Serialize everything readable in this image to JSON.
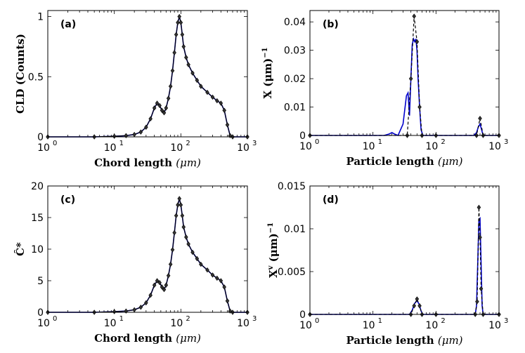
{
  "chart_data": [
    {
      "type": "line",
      "panel_label": "(a)",
      "xlabel": "Chord length",
      "xunit": "(μm)",
      "ylabel": "CLD (Counts)",
      "xscale": "log",
      "xlim": [
        1,
        1000
      ],
      "ylim": [
        0,
        1.05
      ],
      "xticks": [
        "10",
        "10",
        "10",
        "10"
      ],
      "xtick_exponents": [
        "0",
        "1",
        "2",
        "3"
      ],
      "yticks": [
        "0",
        "0.5",
        "1"
      ],
      "ytick_values": [
        0,
        0.5,
        1
      ],
      "series": [
        {
          "role": "fit",
          "color": "#0000cc",
          "x": [
            1,
            5,
            10,
            15,
            20,
            25,
            30,
            35,
            40,
            44,
            48,
            52,
            56,
            60,
            65,
            70,
            75,
            80,
            85,
            90,
            95,
            100,
            105,
            110,
            120,
            130,
            150,
            175,
            200,
            250,
            300,
            350,
            400,
            450,
            500,
            550,
            600,
            1000
          ],
          "y": [
            0,
            0,
            0.005,
            0.01,
            0.02,
            0.04,
            0.08,
            0.15,
            0.24,
            0.28,
            0.26,
            0.22,
            0.2,
            0.24,
            0.32,
            0.42,
            0.55,
            0.7,
            0.85,
            0.95,
            1.0,
            0.95,
            0.85,
            0.75,
            0.66,
            0.6,
            0.53,
            0.47,
            0.42,
            0.37,
            0.33,
            0.3,
            0.28,
            0.22,
            0.1,
            0.01,
            0,
            0
          ]
        },
        {
          "role": "data",
          "color": "#000000",
          "marker": "diamond",
          "x": [
            1,
            5,
            10,
            15,
            20,
            25,
            30,
            35,
            40,
            44,
            48,
            52,
            56,
            60,
            65,
            70,
            75,
            80,
            85,
            90,
            95,
            100,
            105,
            110,
            120,
            130,
            150,
            175,
            200,
            250,
            300,
            350,
            400,
            450,
            500,
            550,
            600,
            1000
          ],
          "y": [
            0,
            0,
            0.005,
            0.01,
            0.02,
            0.04,
            0.08,
            0.15,
            0.24,
            0.28,
            0.26,
            0.22,
            0.2,
            0.24,
            0.32,
            0.42,
            0.55,
            0.7,
            0.85,
            0.95,
            1.0,
            0.95,
            0.85,
            0.75,
            0.66,
            0.6,
            0.53,
            0.47,
            0.42,
            0.37,
            0.33,
            0.3,
            0.28,
            0.22,
            0.1,
            0.01,
            0,
            0
          ]
        }
      ]
    },
    {
      "type": "line",
      "panel_label": "(b)",
      "xlabel": "Particle length",
      "xunit": "(μm)",
      "ylabel": "X (μm)",
      "ylabel_exponent": "−1",
      "xscale": "log",
      "xlim": [
        1,
        1000
      ],
      "ylim": [
        0,
        0.044
      ],
      "xticks": [
        "10",
        "10",
        "10",
        "10"
      ],
      "xtick_exponents": [
        "0",
        "1",
        "2",
        "3"
      ],
      "yticks": [
        "0",
        "0.01",
        "0.02",
        "0.03",
        "0.04"
      ],
      "ytick_values": [
        0,
        0.01,
        0.02,
        0.03,
        0.04
      ],
      "series": [
        {
          "role": "fit",
          "color": "#0000cc",
          "x": [
            1,
            15,
            18,
            20,
            22,
            25,
            30,
            34,
            36,
            38,
            40,
            42,
            44,
            46,
            48,
            50,
            52,
            55,
            58,
            62,
            100,
            400,
            440,
            470,
            500,
            530,
            560,
            1000
          ],
          "y": [
            0,
            0,
            0.0005,
            0.001,
            0.0005,
            0,
            0.004,
            0.014,
            0.015,
            0.007,
            0.02,
            0.032,
            0.034,
            0.033,
            0.034,
            0.03,
            0.02,
            0.01,
            0.002,
            0,
            0,
            0,
            0.001,
            0.003,
            0.004,
            0.002,
            0,
            0
          ]
        },
        {
          "role": "data",
          "color": "#000000",
          "marker": "diamond",
          "dashed": true,
          "x": [
            1,
            35,
            40,
            45,
            50,
            55,
            60,
            100,
            440,
            500,
            560,
            1000
          ],
          "y": [
            0,
            0,
            0.02,
            0.042,
            0.033,
            0.01,
            0,
            0,
            0,
            0.006,
            0,
            0
          ]
        }
      ]
    },
    {
      "type": "line",
      "panel_label": "(c)",
      "xlabel": "Chord length",
      "xunit": "(μm)",
      "ylabel": "Ĉ*",
      "xscale": "log",
      "xlim": [
        1,
        1000
      ],
      "ylim": [
        0,
        20
      ],
      "xticks": [
        "10",
        "10",
        "10",
        "10"
      ],
      "xtick_exponents": [
        "0",
        "1",
        "2",
        "3"
      ],
      "yticks": [
        "0",
        "5",
        "10",
        "15",
        "20"
      ],
      "ytick_values": [
        0,
        5,
        10,
        15,
        20
      ],
      "series": [
        {
          "role": "fit",
          "color": "#0000cc",
          "x": [
            1,
            5,
            10,
            15,
            20,
            25,
            30,
            35,
            40,
            44,
            48,
            52,
            56,
            60,
            65,
            70,
            75,
            80,
            85,
            90,
            95,
            100,
            105,
            110,
            120,
            130,
            150,
            175,
            200,
            250,
            300,
            350,
            400,
            450,
            500,
            550,
            600,
            1000
          ],
          "y": [
            0,
            0,
            0.1,
            0.2,
            0.4,
            0.8,
            1.5,
            2.7,
            4.3,
            5.0,
            4.7,
            4.0,
            3.6,
            4.3,
            5.8,
            7.6,
            9.9,
            12.6,
            15.3,
            17.0,
            18.0,
            17.0,
            15.3,
            13.5,
            11.9,
            10.8,
            9.5,
            8.5,
            7.6,
            6.7,
            5.9,
            5.4,
            5.0,
            4.0,
            1.8,
            0.2,
            0,
            0
          ]
        },
        {
          "role": "data",
          "color": "#000000",
          "marker": "diamond",
          "x": [
            1,
            5,
            10,
            15,
            20,
            25,
            30,
            35,
            40,
            44,
            48,
            52,
            56,
            60,
            65,
            70,
            75,
            80,
            85,
            90,
            95,
            100,
            105,
            110,
            120,
            130,
            150,
            175,
            200,
            250,
            300,
            350,
            400,
            450,
            500,
            550,
            600,
            1000
          ],
          "y": [
            0,
            0,
            0.1,
            0.2,
            0.4,
            0.8,
            1.5,
            2.7,
            4.3,
            5.0,
            4.7,
            4.0,
            3.6,
            4.3,
            5.8,
            7.6,
            9.9,
            12.6,
            15.3,
            17.0,
            18.0,
            17.0,
            15.3,
            13.5,
            11.9,
            10.8,
            9.5,
            8.5,
            7.6,
            6.7,
            5.9,
            5.4,
            5.0,
            4.0,
            1.8,
            0.2,
            0,
            0
          ]
        }
      ]
    },
    {
      "type": "line",
      "panel_label": "(d)",
      "xlabel": "Particle length",
      "xunit": "(μm)",
      "ylabel": "X",
      "ylabel_super": "v",
      "ylabel_unit": " (μm)",
      "ylabel_exponent": "−1",
      "xscale": "log",
      "xlim": [
        1,
        1000
      ],
      "ylim": [
        0,
        0.015
      ],
      "xticks": [
        "10",
        "10",
        "10",
        "10"
      ],
      "xtick_exponents": [
        "0",
        "1",
        "2",
        "3"
      ],
      "yticks": [
        "0",
        "0.005",
        "0.01",
        "0.015"
      ],
      "ytick_values": [
        0,
        0.005,
        0.01,
        0.015
      ],
      "series": [
        {
          "role": "fit",
          "color": "#0000cc",
          "x": [
            1,
            38,
            42,
            46,
            50,
            54,
            58,
            62,
            100,
            420,
            440,
            460,
            480,
            500,
            520,
            540,
            560,
            1000
          ],
          "y": [
            0,
            0,
            0.0005,
            0.0013,
            0.0016,
            0.0012,
            0.0004,
            0,
            0,
            0,
            0.001,
            0.006,
            0.011,
            0.0112,
            0.006,
            0.001,
            0,
            0
          ]
        },
        {
          "role": "data",
          "color": "#000000",
          "marker": "diamond",
          "dashed": true,
          "x": [
            1,
            40,
            45,
            50,
            55,
            60,
            100,
            420,
            450,
            480,
            500,
            520,
            560,
            1000
          ],
          "y": [
            0,
            0,
            0.001,
            0.0018,
            0.001,
            0,
            0,
            0,
            0.0015,
            0.0125,
            0.009,
            0.003,
            0,
            0
          ]
        }
      ]
    }
  ]
}
